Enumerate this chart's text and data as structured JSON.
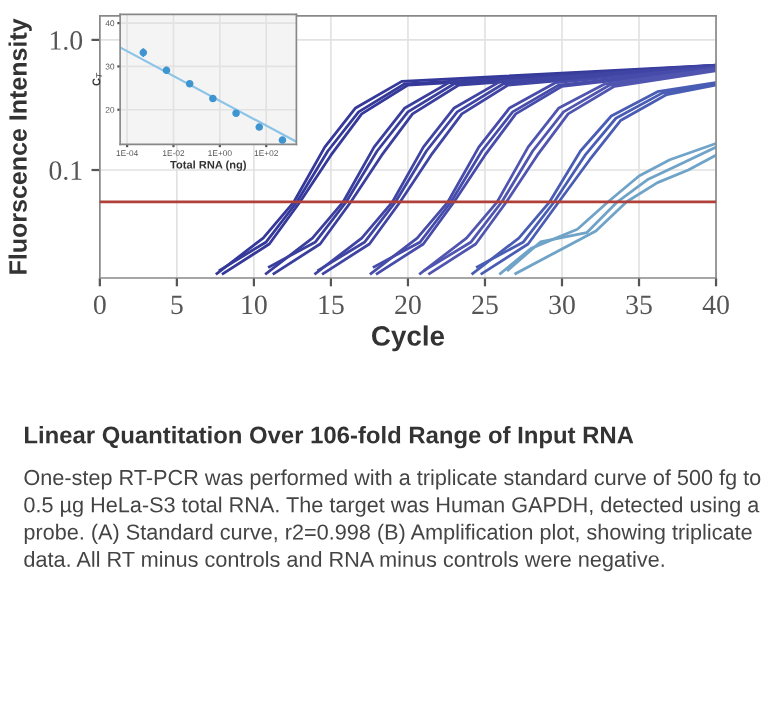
{
  "chart_data": [
    {
      "type": "line",
      "title": "Linear Quantitation Over 106-fold Range of Input RNA",
      "xlabel": "Cycle",
      "ylabel": "Fluorscence Intensity",
      "log": "y",
      "grid": true,
      "marker": "none",
      "line_style": "solid",
      "xlim": [
        0,
        40
      ],
      "xticks": [
        0,
        5,
        10,
        15,
        20,
        25,
        30,
        35,
        40
      ],
      "ylim": [
        0.0148,
        1.53
      ],
      "yticks": [
        {
          "value": 0.1,
          "label": "0.1"
        },
        {
          "value": 1,
          "label": "1.0"
        }
      ],
      "ref_lines": [
        {
          "axis": "y",
          "value": 0.057,
          "color": "#b0403a"
        }
      ],
      "annotations": [
        "One-step RT-PCR was performed with a triplicate standard curve of 500 fg to 0.5 µg HeLa-S3 total RNA. The target was Human GAPDH, detected using a probe. (A) Standard curve, r2=0.998 (B) Amplification plot, showing triplicate data. All RT minus controls and RNA minus controls were negative."
      ],
      "series": [
        {
          "color": "#35399a",
          "x": [
            7.6,
            10.6,
            12.6,
            14.6,
            16.6,
            19.6,
            40
          ],
          "values": [
            0.016,
            0.03,
            0.057,
            0.15,
            0.3,
            0.48,
            0.64
          ]
        },
        {
          "color": "#35399a",
          "x": [
            7.8,
            10.8,
            12.8,
            14.8,
            16.8,
            19.8,
            40
          ],
          "values": [
            0.017,
            0.028,
            0.057,
            0.14,
            0.28,
            0.46,
            0.63
          ]
        },
        {
          "color": "#35399a",
          "x": [
            8,
            11,
            13,
            15,
            17,
            20,
            40
          ],
          "values": [
            0.016,
            0.027,
            0.057,
            0.13,
            0.27,
            0.45,
            0.62
          ]
        },
        {
          "color": "#3a3f9e",
          "x": [
            10.8,
            13.8,
            15.8,
            17.8,
            19.8,
            22.8,
            40
          ],
          "values": [
            0.016,
            0.03,
            0.057,
            0.15,
            0.3,
            0.48,
            0.64
          ]
        },
        {
          "color": "#3a3f9e",
          "x": [
            11,
            14,
            16,
            18,
            20,
            23,
            40
          ],
          "values": [
            0.018,
            0.028,
            0.057,
            0.14,
            0.28,
            0.46,
            0.63
          ]
        },
        {
          "color": "#3a3f9e",
          "x": [
            11.3,
            14.3,
            16.3,
            18.3,
            20.3,
            23.3,
            40
          ],
          "values": [
            0.016,
            0.027,
            0.057,
            0.13,
            0.27,
            0.45,
            0.62
          ]
        },
        {
          "color": "#4045a4",
          "x": [
            14,
            17,
            19,
            21,
            23,
            26,
            40
          ],
          "values": [
            0.016,
            0.03,
            0.057,
            0.15,
            0.3,
            0.48,
            0.64
          ]
        },
        {
          "color": "#4045a4",
          "x": [
            14.2,
            17.2,
            19.2,
            21.2,
            23.2,
            26.2,
            40
          ],
          "values": [
            0.017,
            0.028,
            0.057,
            0.14,
            0.28,
            0.46,
            0.63
          ]
        },
        {
          "color": "#4045a4",
          "x": [
            14.5,
            17.5,
            19.5,
            21.5,
            23.5,
            26.5,
            40
          ],
          "values": [
            0.016,
            0.027,
            0.057,
            0.13,
            0.27,
            0.45,
            0.62
          ]
        },
        {
          "color": "#474caa",
          "x": [
            17.6,
            20.6,
            22.6,
            24.6,
            26.6,
            29.6,
            40
          ],
          "values": [
            0.016,
            0.03,
            0.057,
            0.15,
            0.3,
            0.47,
            0.62
          ]
        },
        {
          "color": "#474caa",
          "x": [
            17.8,
            20.8,
            22.8,
            24.8,
            26.8,
            29.8,
            40
          ],
          "values": [
            0.018,
            0.028,
            0.057,
            0.14,
            0.28,
            0.45,
            0.61
          ]
        },
        {
          "color": "#474caa",
          "x": [
            18,
            21,
            23,
            25,
            27,
            30,
            40
          ],
          "values": [
            0.016,
            0.027,
            0.057,
            0.13,
            0.27,
            0.44,
            0.6
          ]
        },
        {
          "color": "#5055b0",
          "x": [
            20.8,
            23.8,
            25.8,
            27.8,
            29.8,
            32.8,
            40
          ],
          "values": [
            0.016,
            0.03,
            0.057,
            0.15,
            0.3,
            0.46,
            0.6
          ]
        },
        {
          "color": "#5055b0",
          "x": [
            21.1,
            24.1,
            26.1,
            28.1,
            30.1,
            33.1,
            40
          ],
          "values": [
            0.017,
            0.028,
            0.057,
            0.14,
            0.28,
            0.45,
            0.59
          ]
        },
        {
          "color": "#5055b0",
          "x": [
            21.4,
            24.4,
            26.4,
            28.4,
            30.4,
            33.4,
            40
          ],
          "values": [
            0.016,
            0.027,
            0.057,
            0.13,
            0.27,
            0.44,
            0.58
          ]
        },
        {
          "color": "#4a5db4",
          "x": [
            24.2,
            27.2,
            29.2,
            31.2,
            33.2,
            36.2,
            40
          ],
          "values": [
            0.016,
            0.03,
            0.057,
            0.14,
            0.26,
            0.4,
            0.47
          ]
        },
        {
          "color": "#4a5db4",
          "x": [
            24.5,
            27.5,
            29.5,
            31.5,
            33.5,
            36.5,
            40
          ],
          "values": [
            0.018,
            0.028,
            0.057,
            0.13,
            0.25,
            0.39,
            0.46
          ]
        },
        {
          "color": "#4a5db4",
          "x": [
            24.8,
            27.8,
            29.8,
            31.8,
            33.8,
            36.8,
            40
          ],
          "values": [
            0.016,
            0.027,
            0.057,
            0.12,
            0.24,
            0.38,
            0.45
          ]
        },
        {
          "color": "#6fa3c8",
          "x": [
            26,
            28,
            31,
            33,
            35,
            37,
            40
          ],
          "values": [
            0.016,
            0.025,
            0.035,
            0.057,
            0.09,
            0.12,
            0.16
          ]
        },
        {
          "color": "#6fa3c8",
          "x": [
            26.5,
            28.6,
            31.6,
            33.6,
            35.6,
            37.6,
            40
          ],
          "values": [
            0.017,
            0.028,
            0.033,
            0.057,
            0.085,
            0.11,
            0.15
          ]
        },
        {
          "color": "#6fa3c8",
          "x": [
            27,
            29.2,
            32.2,
            34.2,
            36.2,
            38.2,
            40
          ],
          "values": [
            0.016,
            0.022,
            0.034,
            0.057,
            0.08,
            0.1,
            0.13
          ]
        }
      ]
    },
    {
      "type": "scatter",
      "xlabel": "Total RNA (ng)",
      "ylabel": "C$_{T}$",
      "log": "x",
      "grid": true,
      "marker": "circle",
      "xlim": [
        5e-05,
        2000
      ],
      "xticks": [
        {
          "value": 0.0001,
          "label": "1E-04"
        },
        {
          "value": 0.01,
          "label": "1E-02"
        },
        {
          "value": 1,
          "label": "1E+00"
        },
        {
          "value": 100,
          "label": "1E+02"
        }
      ],
      "ylim": [
        12,
        42
      ],
      "yticks": [
        20,
        30,
        40
      ],
      "series": [
        {
          "color": "#3f95d0",
          "x": [
            0.0005,
            0.005,
            0.05,
            0.5,
            5,
            50,
            500
          ],
          "values": [
            33.2,
            29.1,
            26,
            22.6,
            19.2,
            16,
            13
          ],
          "errors": [
            1,
            0.8,
            null,
            null,
            null,
            null,
            null
          ]
        },
        {
          "type": "line",
          "marker": "none",
          "color": "#8cc4e8",
          "x": [
            5e-05,
            2000
          ],
          "values": [
            34.4,
            12.6
          ]
        }
      ]
    }
  ]
}
